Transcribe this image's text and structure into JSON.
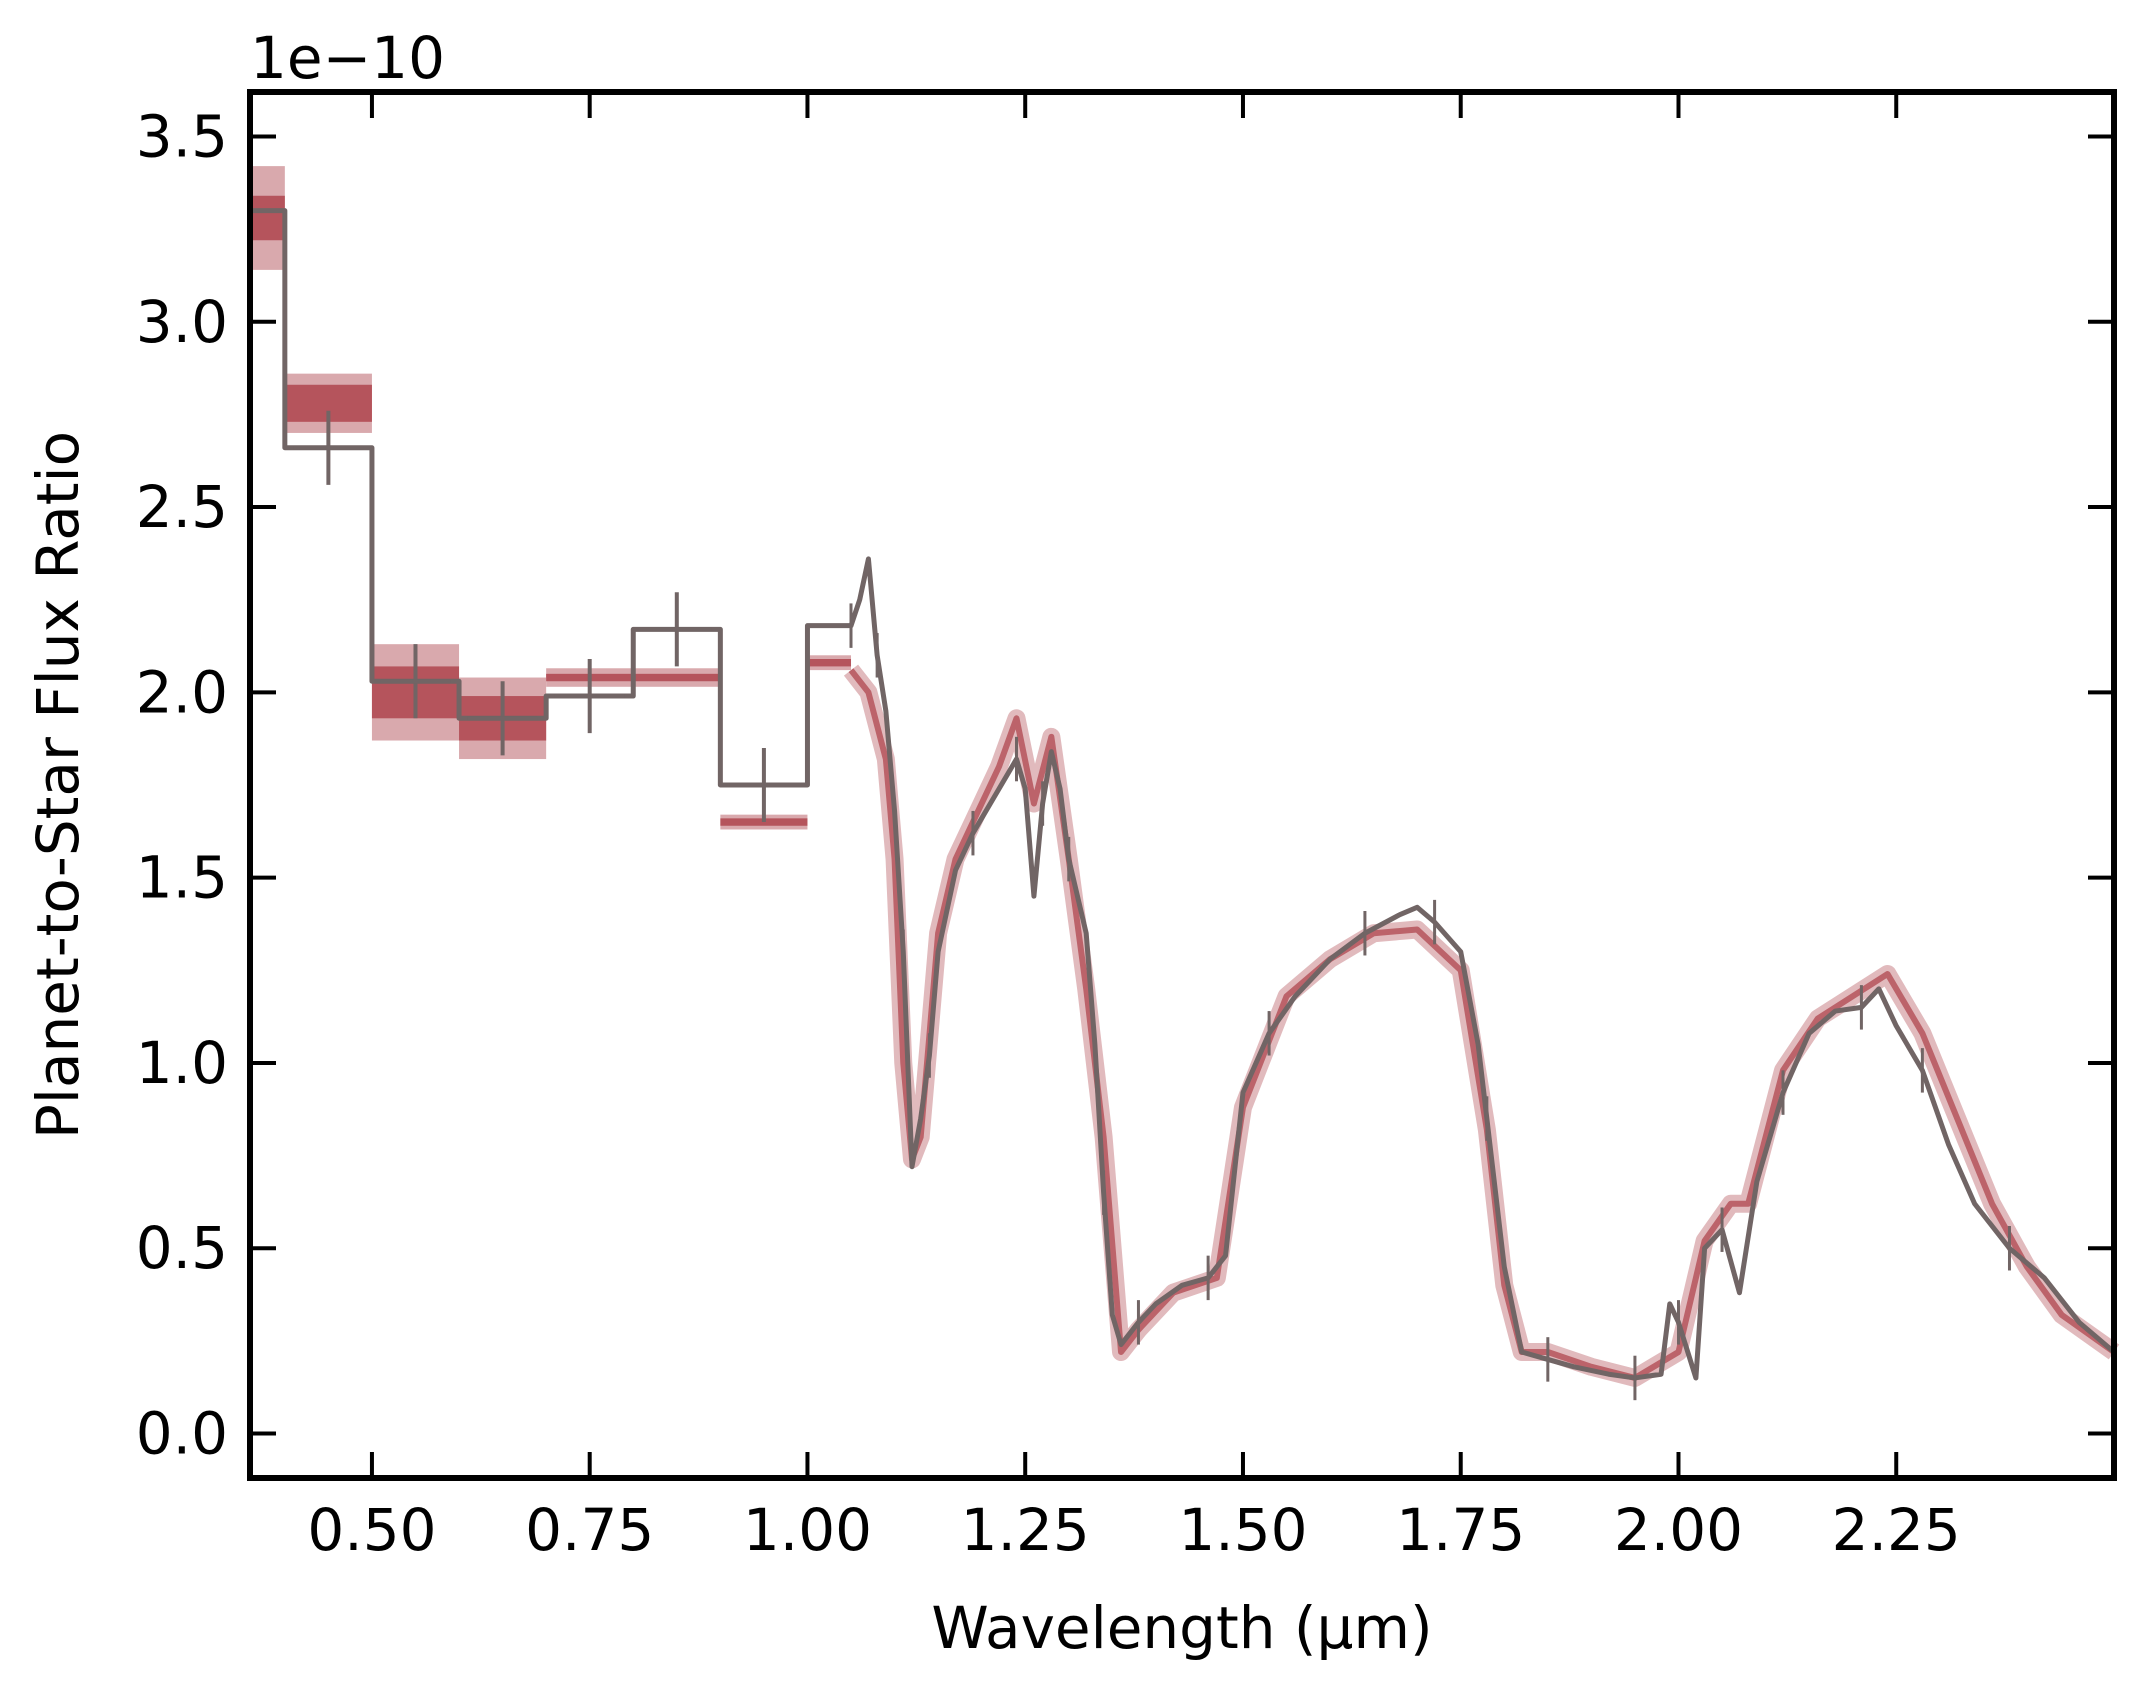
{
  "chart_data": {
    "type": "line",
    "xlabel": "Wavelength (μm)",
    "ylabel": "Planet-to-Star Flux Ratio",
    "y_scale_label": "1e−10",
    "xlim": [
      0.36,
      2.5
    ],
    "ylim": [
      -0.12,
      3.62
    ],
    "x_ticks": [
      0.5,
      0.75,
      1.0,
      1.25,
      1.5,
      1.75,
      2.0,
      2.25
    ],
    "x_tick_labels": [
      "0.50",
      "0.75",
      "1.00",
      "1.25",
      "1.50",
      "1.75",
      "2.00",
      "2.25"
    ],
    "y_ticks": [
      0.0,
      0.5,
      1.0,
      1.5,
      2.0,
      2.5,
      3.0,
      3.5
    ],
    "y_tick_labels": [
      "0.0",
      "0.5",
      "1.0",
      "1.5",
      "2.0",
      "2.5",
      "3.0",
      "3.5"
    ],
    "grid": false,
    "colors": {
      "data": "#716565",
      "model": "#b5545c",
      "model_light": "#d9a9ad",
      "axes": "#000000"
    },
    "model_bins": [
      {
        "x0": 0.36,
        "x1": 0.4,
        "y": 3.28,
        "inner": 0.06,
        "outer": 0.14
      },
      {
        "x0": 0.4,
        "x1": 0.5,
        "y": 2.78,
        "inner": 0.05,
        "outer": 0.08
      },
      {
        "x0": 0.5,
        "x1": 0.6,
        "y": 2.0,
        "inner": 0.07,
        "outer": 0.13
      },
      {
        "x0": 0.6,
        "x1": 0.7,
        "y": 1.93,
        "inner": 0.06,
        "outer": 0.11
      },
      {
        "x0": 0.7,
        "x1": 0.8,
        "y": 2.04,
        "inner": 0.01,
        "outer": 0.025
      },
      {
        "x0": 0.8,
        "x1": 0.9,
        "y": 2.04,
        "inner": 0.01,
        "outer": 0.025
      },
      {
        "x0": 0.9,
        "x1": 1.0,
        "y": 1.65,
        "inner": 0.01,
        "outer": 0.02
      },
      {
        "x0": 1.0,
        "x1": 1.05,
        "y": 2.08,
        "inner": 0.01,
        "outer": 0.02
      }
    ],
    "model_curve": {
      "x": [
        1.05,
        1.07,
        1.09,
        1.1,
        1.11,
        1.12,
        1.13,
        1.15,
        1.17,
        1.2,
        1.22,
        1.24,
        1.26,
        1.28,
        1.3,
        1.32,
        1.34,
        1.36,
        1.38,
        1.42,
        1.47,
        1.5,
        1.55,
        1.6,
        1.65,
        1.7,
        1.75,
        1.78,
        1.8,
        1.82,
        1.85,
        1.9,
        1.95,
        2.0,
        2.03,
        2.06,
        2.08,
        2.12,
        2.16,
        2.2,
        2.24,
        2.28,
        2.32,
        2.36,
        2.4,
        2.44,
        2.5
      ],
      "y": [
        2.06,
        2.0,
        1.82,
        1.55,
        1.0,
        0.74,
        0.8,
        1.35,
        1.55,
        1.7,
        1.8,
        1.93,
        1.7,
        1.88,
        1.55,
        1.2,
        0.8,
        0.22,
        0.28,
        0.38,
        0.42,
        0.88,
        1.18,
        1.28,
        1.35,
        1.36,
        1.25,
        0.82,
        0.4,
        0.22,
        0.22,
        0.18,
        0.15,
        0.22,
        0.52,
        0.62,
        0.62,
        0.98,
        1.12,
        1.18,
        1.24,
        1.08,
        0.85,
        0.62,
        0.45,
        0.32,
        0.22
      ]
    },
    "data_step": {
      "edges": [
        0.36,
        0.4,
        0.5,
        0.6,
        0.7,
        0.8,
        0.9,
        1.0,
        1.05
      ],
      "values": [
        3.3,
        2.66,
        2.03,
        1.93,
        1.99,
        2.17,
        1.75,
        2.18
      ]
    },
    "data_curve": {
      "x": [
        1.05,
        1.06,
        1.07,
        1.08,
        1.09,
        1.1,
        1.11,
        1.12,
        1.13,
        1.14,
        1.15,
        1.17,
        1.19,
        1.21,
        1.23,
        1.24,
        1.25,
        1.26,
        1.27,
        1.28,
        1.29,
        1.3,
        1.32,
        1.33,
        1.34,
        1.35,
        1.36,
        1.38,
        1.4,
        1.43,
        1.46,
        1.48,
        1.5,
        1.53,
        1.56,
        1.6,
        1.64,
        1.68,
        1.7,
        1.72,
        1.75,
        1.77,
        1.78,
        1.8,
        1.82,
        1.85,
        1.88,
        1.92,
        1.95,
        1.98,
        1.99,
        2.0,
        2.02,
        2.03,
        2.05,
        2.07,
        2.09,
        2.12,
        2.15,
        2.18,
        2.21,
        2.23,
        2.25,
        2.28,
        2.31,
        2.34,
        2.38,
        2.42,
        2.46,
        2.5
      ],
      "y": [
        2.18,
        2.25,
        2.36,
        2.1,
        1.95,
        1.68,
        1.3,
        0.72,
        0.85,
        1.02,
        1.3,
        1.52,
        1.62,
        1.7,
        1.78,
        1.82,
        1.74,
        1.45,
        1.7,
        1.84,
        1.74,
        1.55,
        1.35,
        1.05,
        0.65,
        0.32,
        0.24,
        0.3,
        0.35,
        0.4,
        0.42,
        0.48,
        0.92,
        1.08,
        1.18,
        1.28,
        1.35,
        1.4,
        1.42,
        1.38,
        1.3,
        1.05,
        0.85,
        0.45,
        0.22,
        0.2,
        0.18,
        0.16,
        0.15,
        0.16,
        0.35,
        0.3,
        0.15,
        0.5,
        0.55,
        0.38,
        0.68,
        0.92,
        1.08,
        1.14,
        1.15,
        1.2,
        1.1,
        0.98,
        0.78,
        0.62,
        0.5,
        0.42,
        0.3,
        0.22
      ]
    },
    "data_errorbars": [
      {
        "x": 0.45,
        "y": 2.66,
        "yerr": 0.1,
        "xerr": 0.04
      },
      {
        "x": 0.55,
        "y": 2.03,
        "yerr": 0.1,
        "xerr": 0.04
      },
      {
        "x": 0.65,
        "y": 1.93,
        "yerr": 0.1,
        "xerr": 0.04
      },
      {
        "x": 0.75,
        "y": 1.99,
        "yerr": 0.1,
        "xerr": 0.04
      },
      {
        "x": 0.85,
        "y": 2.17,
        "yerr": 0.1,
        "xerr": 0.04
      },
      {
        "x": 0.95,
        "y": 1.75,
        "yerr": 0.1,
        "xerr": 0.04
      }
    ]
  }
}
